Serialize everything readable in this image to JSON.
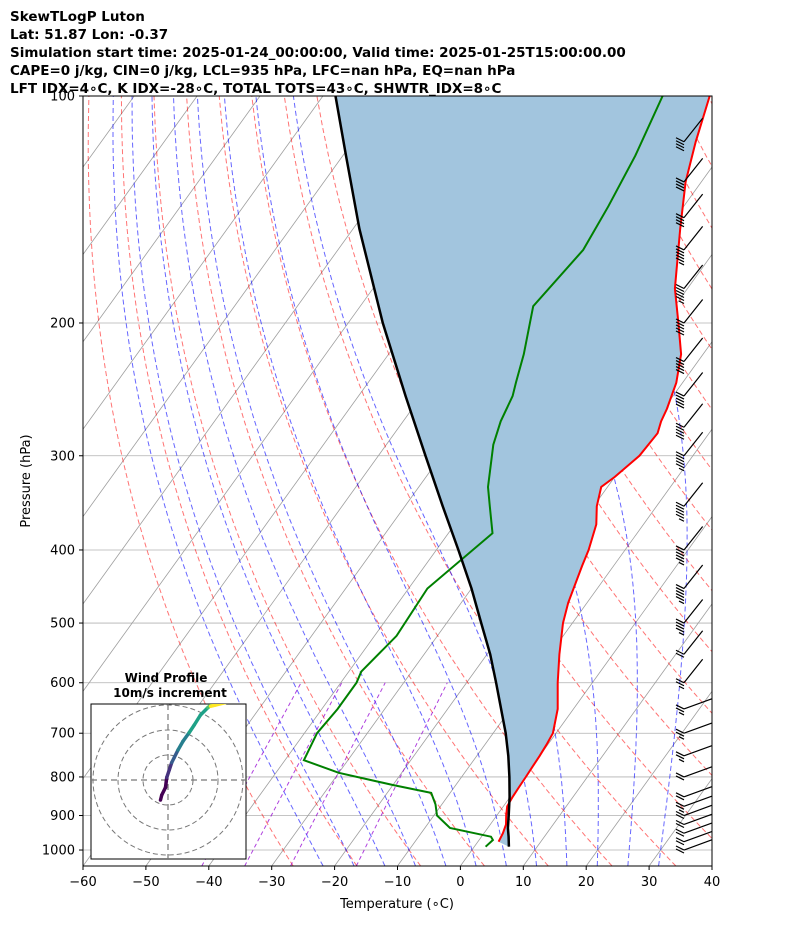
{
  "header": {
    "line1": "SkewTLogP Luton",
    "line2": "Lat: 51.87   Lon: -0.37",
    "line3": "Simulation start time: 2025-01-24_00:00:00, Valid time: 2025-01-25T15:00:00.00",
    "line4": "CAPE=0 j/kg, CIN=0 j/kg, LCL=935 hPa, LFC=nan hPa, EQ=nan hPa",
    "line5": "LFT IDX=4∘C, K IDX=-28∘C, TOTAL TOTS=43∘C, SHWTR_IDX=8∘C"
  },
  "chart_data": {
    "type": "line",
    "subtype": "skewt-logp",
    "xlabel": "Temperature (∘C)",
    "ylabel": "Pressure (hPa)",
    "xlim": [
      -60,
      40
    ],
    "ylim": [
      1050,
      100
    ],
    "yscale": "log",
    "x_ticks": [
      "−60",
      "−50",
      "−40",
      "−30",
      "−20",
      "−10",
      "0",
      "10",
      "20",
      "30",
      "40"
    ],
    "y_ticks": [
      1000,
      900,
      800,
      700,
      600,
      500,
      400,
      300,
      200,
      100
    ],
    "colors": {
      "temperature": "#ff0000",
      "dewpoint": "#008000",
      "parcel": "#000000",
      "shade": "#a2c5de",
      "dry_adiabats": "#ff0000",
      "moist_adiabats": "#0000ff",
      "mixing_ratio": "#9400d3",
      "isotherms": "#9e9e9e"
    },
    "series": [
      {
        "role": "temperature",
        "points": [
          [
            975,
            3.3
          ],
          [
            950,
            3
          ],
          [
            925,
            2.5
          ],
          [
            900,
            1.5
          ],
          [
            875,
            0.6
          ],
          [
            850,
            0.4
          ],
          [
            825,
            0.3
          ],
          [
            800,
            0.2
          ],
          [
            775,
            0.1
          ],
          [
            750,
            0
          ],
          [
            725,
            -0.2
          ],
          [
            700,
            -0.5
          ],
          [
            650,
            -2.5
          ],
          [
            600,
            -5.5
          ],
          [
            550,
            -8.5
          ],
          [
            500,
            -11.5
          ],
          [
            470,
            -13
          ],
          [
            420,
            -15
          ],
          [
            400,
            -15.8
          ],
          [
            370,
            -17.5
          ],
          [
            350,
            -19.5
          ],
          [
            330,
            -21
          ],
          [
            320,
            -20
          ],
          [
            300,
            -18.5
          ],
          [
            280,
            -18.2
          ],
          [
            270,
            -19
          ],
          [
            260,
            -19.5
          ],
          [
            240,
            -21
          ],
          [
            220,
            -23.5
          ],
          [
            200,
            -27.5
          ],
          [
            180,
            -32
          ],
          [
            150,
            -38
          ],
          [
            130,
            -42.5
          ],
          [
            115,
            -45.5
          ],
          [
            100,
            -48.5
          ]
        ]
      },
      {
        "role": "dewpoint",
        "points": [
          [
            990,
            1.8
          ],
          [
            970,
            2.2
          ],
          [
            960,
            1.5
          ],
          [
            935,
            -6
          ],
          [
            900,
            -9.5
          ],
          [
            870,
            -11
          ],
          [
            840,
            -13
          ],
          [
            820,
            -20
          ],
          [
            790,
            -30
          ],
          [
            760,
            -37
          ],
          [
            700,
            -38
          ],
          [
            650,
            -37.5
          ],
          [
            600,
            -37.5
          ],
          [
            580,
            -38
          ],
          [
            520,
            -36.5
          ],
          [
            450,
            -37
          ],
          [
            380,
            -33
          ],
          [
            350,
            -36.5
          ],
          [
            330,
            -39
          ],
          [
            290,
            -43
          ],
          [
            270,
            -44.5
          ],
          [
            250,
            -45.5
          ],
          [
            240,
            -46.5
          ],
          [
            220,
            -48.5
          ],
          [
            190,
            -52.5
          ],
          [
            160,
            -51
          ],
          [
            140,
            -52
          ],
          [
            120,
            -53.5
          ],
          [
            100,
            -56
          ]
        ]
      },
      {
        "role": "parcel",
        "points": [
          [
            990,
            5.5
          ],
          [
            960,
            4.3
          ],
          [
            935,
            3.2
          ],
          [
            900,
            1.9
          ],
          [
            850,
            -0.1
          ],
          [
            800,
            -2.4
          ],
          [
            750,
            -5
          ],
          [
            700,
            -8
          ],
          [
            650,
            -11.5
          ],
          [
            600,
            -15.3
          ],
          [
            550,
            -19.5
          ],
          [
            500,
            -24.5
          ],
          [
            450,
            -30
          ],
          [
            400,
            -36.5
          ],
          [
            350,
            -44
          ],
          [
            300,
            -52.5
          ],
          [
            250,
            -62.5
          ],
          [
            200,
            -74.5
          ],
          [
            150,
            -89
          ],
          [
            120,
            -99.5
          ],
          [
            100,
            -108
          ]
        ]
      }
    ],
    "wind_barbs": [
      {
        "p": 1000,
        "kt": 20
      },
      {
        "p": 975,
        "kt": 20
      },
      {
        "p": 950,
        "kt": 20
      },
      {
        "p": 925,
        "kt": 20
      },
      {
        "p": 900,
        "kt": 20
      },
      {
        "p": 875,
        "kt": 15
      },
      {
        "p": 850,
        "kt": 20
      },
      {
        "p": 800,
        "kt": 20
      },
      {
        "p": 750,
        "kt": 15
      },
      {
        "p": 700,
        "kt": 15
      },
      {
        "p": 650,
        "kt": 15
      },
      {
        "p": 600,
        "kt": 15
      },
      {
        "p": 550,
        "kt": 20
      },
      {
        "p": 500,
        "kt": 35
      },
      {
        "p": 450,
        "kt": 45
      },
      {
        "p": 400,
        "kt": 45
      },
      {
        "p": 350,
        "kt": 45
      },
      {
        "p": 300,
        "kt": 45
      },
      {
        "p": 275,
        "kt": 50
      },
      {
        "p": 250,
        "kt": 50
      },
      {
        "p": 225,
        "kt": 50
      },
      {
        "p": 200,
        "kt": 50
      },
      {
        "p": 180,
        "kt": 45
      },
      {
        "p": 160,
        "kt": 45
      },
      {
        "p": 145,
        "kt": 40
      },
      {
        "p": 130,
        "kt": 40
      },
      {
        "p": 115,
        "kt": 40
      }
    ],
    "hodograph": {
      "title": "Wind Profile",
      "subtitle": "10m/s increment",
      "rings": [
        10,
        20,
        30
      ],
      "points": [
        [
          -3,
          8
        ],
        [
          -2.5,
          6
        ],
        [
          -1,
          3
        ],
        [
          -0.5,
          -1
        ],
        [
          0.5,
          -4
        ],
        [
          1.5,
          -7
        ],
        [
          2.5,
          -9
        ],
        [
          4,
          -12
        ],
        [
          6,
          -15.5
        ],
        [
          8.5,
          -19
        ],
        [
          10.5,
          -22
        ],
        [
          13,
          -26
        ],
        [
          16,
          -29
        ],
        [
          18.5,
          -31
        ],
        [
          21,
          -31.5
        ],
        [
          22,
          -33
        ],
        [
          23,
          -31
        ],
        [
          19,
          -30
        ],
        [
          17,
          -29.5
        ]
      ]
    }
  }
}
